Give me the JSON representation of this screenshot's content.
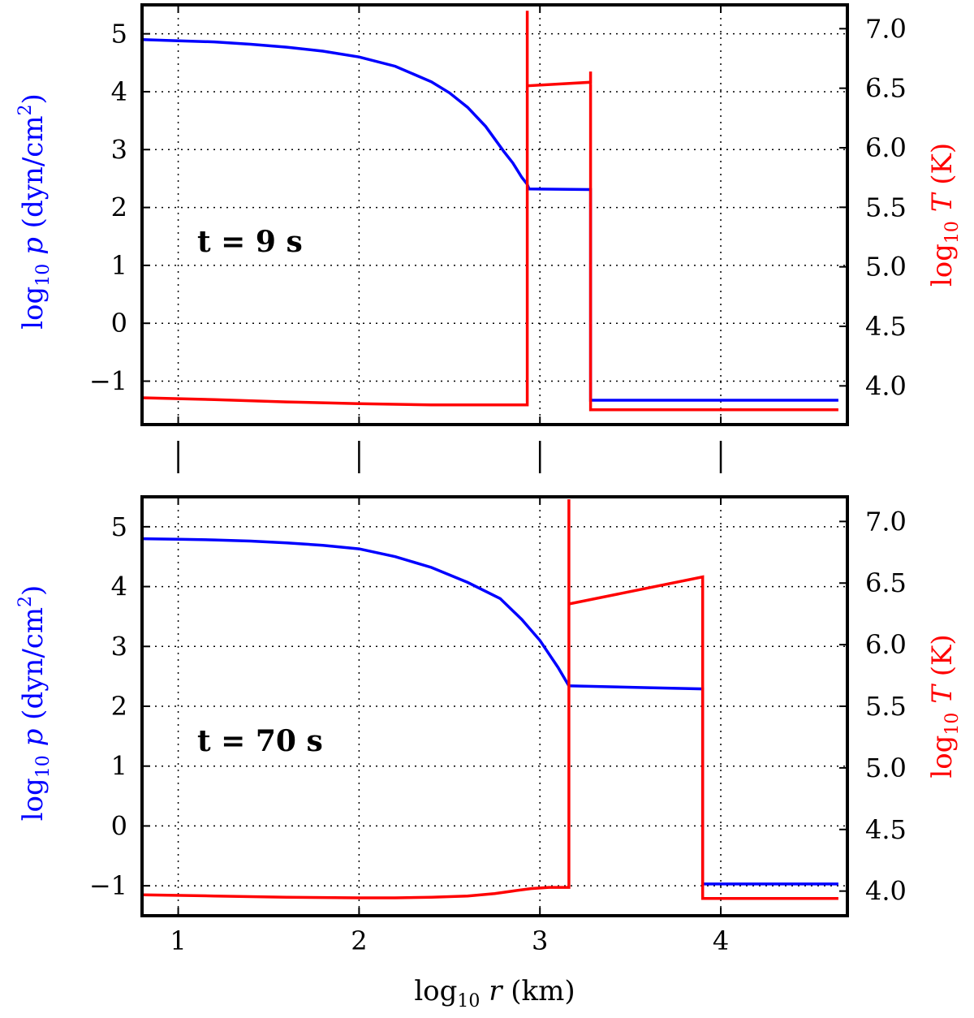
{
  "chart_data": [
    {
      "type": "line",
      "panel": "top",
      "annotation": "t = 9 s",
      "xlabel": {
        "main": "log",
        "sub": "10",
        "var": " r",
        "unit": " (km)"
      },
      "ylabel_left": {
        "main": "log",
        "sub": "10",
        "var": " p",
        "unit": " (dyn/cm",
        "sup": "2",
        "close": ")"
      },
      "ylabel_right": {
        "main": "log",
        "sub": "10",
        "var": " T",
        "unit": " (K)"
      },
      "xlim": [
        0.8,
        4.7
      ],
      "ylim_left": [
        -1.75,
        5.5
      ],
      "ylim_right": [
        3.675,
        7.2
      ],
      "xticks": [
        1,
        2,
        3,
        4
      ],
      "xtick_labels": [
        "1",
        "2",
        "3",
        "4"
      ],
      "yticks_left": [
        -1,
        0,
        1,
        2,
        3,
        4,
        5
      ],
      "ytick_labels_left": [
        "−1",
        "0",
        "1",
        "2",
        "3",
        "4",
        "5"
      ],
      "yticks_right": [
        4.0,
        4.5,
        5.0,
        5.5,
        6.0,
        6.5,
        7.0
      ],
      "ytick_labels_right": [
        "4.0",
        "4.5",
        "5.0",
        "5.5",
        "6.0",
        "6.5",
        "7.0"
      ],
      "grid": true,
      "series": [
        {
          "name": "log10 p",
          "axis": "left",
          "color": "#0000ff",
          "x": [
            0.8,
            1.0,
            1.2,
            1.4,
            1.6,
            1.8,
            2.0,
            2.2,
            2.4,
            2.5,
            2.6,
            2.7,
            2.8,
            2.85,
            2.9,
            2.93,
            2.94,
            3.28,
            3.28,
            3.3,
            3.5,
            4.0,
            4.5,
            4.65
          ],
          "y": [
            4.9,
            4.88,
            4.86,
            4.82,
            4.77,
            4.7,
            4.6,
            4.44,
            4.17,
            3.98,
            3.73,
            3.4,
            2.97,
            2.77,
            2.52,
            2.4,
            2.32,
            2.31,
            -1.33,
            -1.33,
            -1.33,
            -1.33,
            -1.33,
            -1.33
          ]
        },
        {
          "name": "log10 T",
          "axis": "right",
          "color": "#ff0000",
          "x": [
            0.8,
            1.2,
            1.6,
            2.0,
            2.4,
            2.8,
            2.93,
            2.93,
            2.93,
            2.93,
            3.28,
            3.28,
            3.28,
            3.5,
            4.0,
            4.5,
            4.65
          ],
          "y": [
            3.9,
            3.885,
            3.865,
            3.85,
            3.84,
            3.84,
            3.84,
            7.15,
            7.15,
            6.52,
            6.55,
            6.64,
            3.8,
            3.8,
            3.8,
            3.8,
            3.8
          ]
        }
      ]
    },
    {
      "type": "line",
      "panel": "bottom",
      "annotation": "t = 70 s",
      "xlabel": {
        "main": "log",
        "sub": "10",
        "var": " r",
        "unit": " (km)"
      },
      "ylabel_left": {
        "main": "log",
        "sub": "10",
        "var": " p",
        "unit": " (dyn/cm",
        "sup": "2",
        "close": ")"
      },
      "ylabel_right": {
        "main": "log",
        "sub": "10",
        "var": " T",
        "unit": " (K)"
      },
      "xlim": [
        0.8,
        4.7
      ],
      "ylim_left": [
        -1.5,
        5.5
      ],
      "ylim_right": [
        3.8,
        7.2
      ],
      "xticks": [
        1,
        2,
        3,
        4
      ],
      "xtick_labels": [
        "1",
        "2",
        "3",
        "4"
      ],
      "yticks_left": [
        -1,
        0,
        1,
        2,
        3,
        4,
        5
      ],
      "ytick_labels_left": [
        "−1",
        "0",
        "1",
        "2",
        "3",
        "4",
        "5"
      ],
      "yticks_right": [
        4.0,
        4.5,
        5.0,
        5.5,
        6.0,
        6.5,
        7.0
      ],
      "ytick_labels_right": [
        "4.0",
        "4.5",
        "5.0",
        "5.5",
        "6.0",
        "6.5",
        "7.0"
      ],
      "grid": true,
      "series": [
        {
          "name": "log10 p",
          "axis": "left",
          "color": "#0000ff",
          "x": [
            0.8,
            1.0,
            1.2,
            1.4,
            1.6,
            1.8,
            2.0,
            2.2,
            2.4,
            2.6,
            2.78,
            2.9,
            3.0,
            3.1,
            3.16,
            3.17,
            3.6,
            3.9,
            3.9,
            4.0,
            4.65
          ],
          "y": [
            4.8,
            4.79,
            4.78,
            4.76,
            4.73,
            4.69,
            4.63,
            4.5,
            4.32,
            4.07,
            3.8,
            3.45,
            3.1,
            2.65,
            2.34,
            2.34,
            2.31,
            2.29,
            -0.97,
            -0.97,
            -0.97
          ]
        },
        {
          "name": "log10 T",
          "axis": "right",
          "color": "#ff0000",
          "x": [
            0.8,
            1.2,
            1.6,
            2.0,
            2.2,
            2.4,
            2.6,
            2.75,
            2.85,
            2.95,
            3.05,
            3.16,
            3.16,
            3.16,
            3.16,
            3.9,
            3.9,
            4.0,
            4.65
          ],
          "y": [
            3.97,
            3.96,
            3.95,
            3.945,
            3.945,
            3.95,
            3.96,
            3.98,
            4.0,
            4.02,
            4.03,
            4.03,
            7.18,
            7.18,
            6.33,
            6.55,
            3.94,
            3.94,
            3.94
          ]
        }
      ]
    }
  ]
}
